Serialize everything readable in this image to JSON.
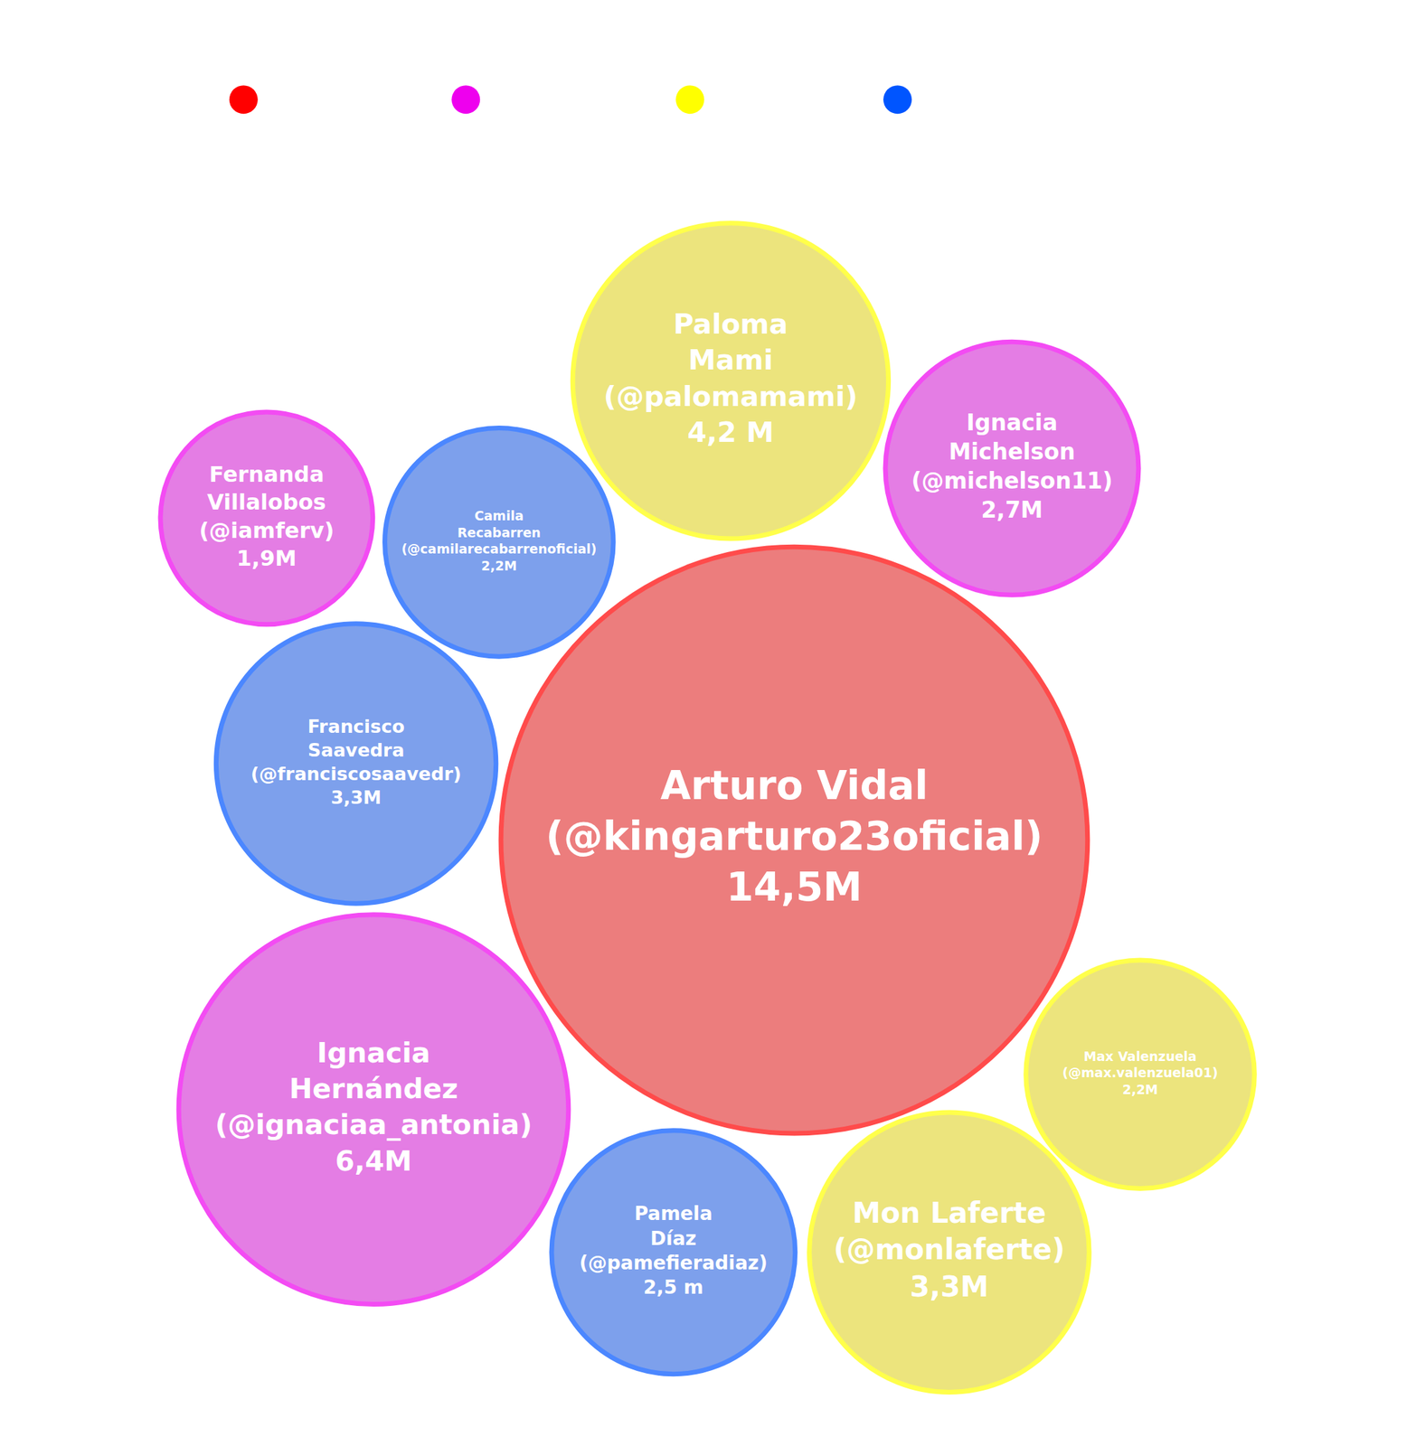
{
  "chart_data": {
    "type": "bubble",
    "tick_labels": false,
    "colors": [
      "#ff0000",
      "#ee00ee",
      "#ffff00",
      "#0055ff"
    ],
    "items": [
      {
        "name": "Arturo Vidal",
        "handle": "(@kingarturo23oficial)",
        "value": 14.5,
        "value_label": "14,5M",
        "color": "#ff0000"
      },
      {
        "name": "Paloma Mami",
        "handle": "(@palomamami)",
        "value": 4.2,
        "value_label": "4,2 M",
        "color": "#ffff00"
      },
      {
        "name": "Ignacia Michelson",
        "handle": "(@michelson11)",
        "value": 2.7,
        "value_label": "2,7M",
        "color": "#ee00ee"
      },
      {
        "name": "Fernanda Villalobos",
        "handle": "(@iamferv)",
        "value": 1.9,
        "value_label": "1,9M",
        "color": "#ee00ee"
      },
      {
        "name": "Camila Recabarren",
        "handle": "(@camilarecabarrenoficial)",
        "value": 2.2,
        "value_label": "2,2M",
        "color": "#0055ff"
      },
      {
        "name": "Francisco Saavedra",
        "handle": "(@franciscosaavedr)",
        "value": 3.3,
        "value_label": "3,3M",
        "color": "#0055ff"
      },
      {
        "name": "Ignacia Hernández",
        "handle": "(@ignaciaa_antonia)",
        "value": 6.4,
        "value_label": "6,4M",
        "color": "#ee00ee"
      },
      {
        "name": "Pamela Díaz",
        "handle": "(@pamefieradiaz)",
        "value": 2.5,
        "value_label": "2,5 m",
        "color": "#0055ff"
      },
      {
        "name": "Mon Laferte",
        "handle": "(@monlaferte)",
        "value": 3.3,
        "value_label": "3,3M",
        "color": "#ffff00"
      },
      {
        "name": "Max Valenzuela",
        "handle": "(@max.valenzuela01)",
        "value": 2.2,
        "value_label": "2,2M",
        "color": "#ffff00"
      }
    ]
  }
}
